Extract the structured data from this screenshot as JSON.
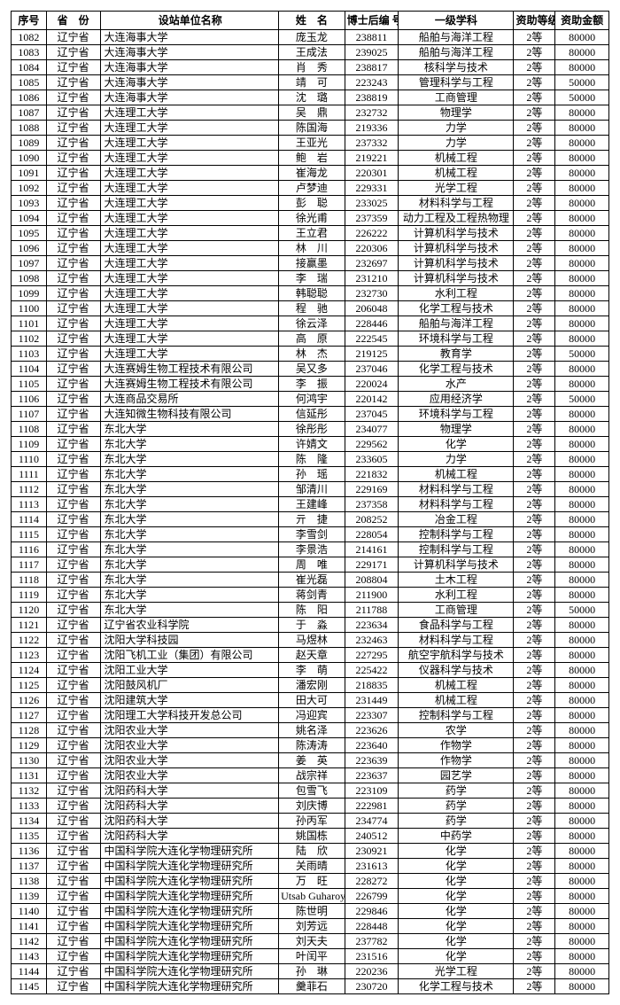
{
  "headers": {
    "seq": "序号",
    "province": "省　份",
    "institution": "设站单位名称",
    "name": "姓　名",
    "postdoc_id": "博士后编 号",
    "discipline": "一级学科",
    "level": "资助等级",
    "amount": "资助金额"
  },
  "rows": [
    {
      "seq": "1082",
      "prov": "辽宁省",
      "inst": "大连海事大学",
      "name": "庞玉龙",
      "id": "238811",
      "disc": "船舶与海洋工程",
      "lvl": "2等",
      "amt": "80000"
    },
    {
      "seq": "1083",
      "prov": "辽宁省",
      "inst": "大连海事大学",
      "name": "王成法",
      "id": "239025",
      "disc": "船舶与海洋工程",
      "lvl": "2等",
      "amt": "80000"
    },
    {
      "seq": "1084",
      "prov": "辽宁省",
      "inst": "大连海事大学",
      "name": "肖　秀",
      "id": "238817",
      "disc": "核科学与技术",
      "lvl": "2等",
      "amt": "80000"
    },
    {
      "seq": "1085",
      "prov": "辽宁省",
      "inst": "大连海事大学",
      "name": "靖　可",
      "id": "223243",
      "disc": "管理科学与工程",
      "lvl": "2等",
      "amt": "50000"
    },
    {
      "seq": "1086",
      "prov": "辽宁省",
      "inst": "大连海事大学",
      "name": "沈　璐",
      "id": "238819",
      "disc": "工商管理",
      "lvl": "2等",
      "amt": "50000"
    },
    {
      "seq": "1087",
      "prov": "辽宁省",
      "inst": "大连理工大学",
      "name": "吴　鼎",
      "id": "232732",
      "disc": "物理学",
      "lvl": "2等",
      "amt": "80000"
    },
    {
      "seq": "1088",
      "prov": "辽宁省",
      "inst": "大连理工大学",
      "name": "陈国海",
      "id": "219336",
      "disc": "力学",
      "lvl": "2等",
      "amt": "80000"
    },
    {
      "seq": "1089",
      "prov": "辽宁省",
      "inst": "大连理工大学",
      "name": "王亚光",
      "id": "237332",
      "disc": "力学",
      "lvl": "2等",
      "amt": "80000"
    },
    {
      "seq": "1090",
      "prov": "辽宁省",
      "inst": "大连理工大学",
      "name": "鲍　岩",
      "id": "219221",
      "disc": "机械工程",
      "lvl": "2等",
      "amt": "80000"
    },
    {
      "seq": "1091",
      "prov": "辽宁省",
      "inst": "大连理工大学",
      "name": "崔海龙",
      "id": "220301",
      "disc": "机械工程",
      "lvl": "2等",
      "amt": "80000"
    },
    {
      "seq": "1092",
      "prov": "辽宁省",
      "inst": "大连理工大学",
      "name": "卢梦迪",
      "id": "229331",
      "disc": "光学工程",
      "lvl": "2等",
      "amt": "80000"
    },
    {
      "seq": "1093",
      "prov": "辽宁省",
      "inst": "大连理工大学",
      "name": "彭　聪",
      "id": "233025",
      "disc": "材料科学与工程",
      "lvl": "2等",
      "amt": "80000"
    },
    {
      "seq": "1094",
      "prov": "辽宁省",
      "inst": "大连理工大学",
      "name": "徐光甫",
      "id": "237359",
      "disc": "动力工程及工程热物理",
      "lvl": "2等",
      "amt": "80000"
    },
    {
      "seq": "1095",
      "prov": "辽宁省",
      "inst": "大连理工大学",
      "name": "王立君",
      "id": "226222",
      "disc": "计算机科学与技术",
      "lvl": "2等",
      "amt": "80000"
    },
    {
      "seq": "1096",
      "prov": "辽宁省",
      "inst": "大连理工大学",
      "name": "林　川",
      "id": "220306",
      "disc": "计算机科学与技术",
      "lvl": "2等",
      "amt": "80000"
    },
    {
      "seq": "1097",
      "prov": "辽宁省",
      "inst": "大连理工大学",
      "name": "接赢墨",
      "id": "232697",
      "disc": "计算机科学与技术",
      "lvl": "2等",
      "amt": "80000"
    },
    {
      "seq": "1098",
      "prov": "辽宁省",
      "inst": "大连理工大学",
      "name": "李　瑞",
      "id": "231210",
      "disc": "计算机科学与技术",
      "lvl": "2等",
      "amt": "80000"
    },
    {
      "seq": "1099",
      "prov": "辽宁省",
      "inst": "大连理工大学",
      "name": "韩聪聪",
      "id": "232730",
      "disc": "水利工程",
      "lvl": "2等",
      "amt": "80000"
    },
    {
      "seq": "1100",
      "prov": "辽宁省",
      "inst": "大连理工大学",
      "name": "程　驰",
      "id": "206048",
      "disc": "化学工程与技术",
      "lvl": "2等",
      "amt": "80000"
    },
    {
      "seq": "1101",
      "prov": "辽宁省",
      "inst": "大连理工大学",
      "name": "徐云泽",
      "id": "228446",
      "disc": "船舶与海洋工程",
      "lvl": "2等",
      "amt": "80000"
    },
    {
      "seq": "1102",
      "prov": "辽宁省",
      "inst": "大连理工大学",
      "name": "高　原",
      "id": "222545",
      "disc": "环境科学与工程",
      "lvl": "2等",
      "amt": "80000"
    },
    {
      "seq": "1103",
      "prov": "辽宁省",
      "inst": "大连理工大学",
      "name": "林　杰",
      "id": "219125",
      "disc": "教育学",
      "lvl": "2等",
      "amt": "50000"
    },
    {
      "seq": "1104",
      "prov": "辽宁省",
      "inst": "大连赛姆生物工程技术有限公司",
      "name": "吴又多",
      "id": "237046",
      "disc": "化学工程与技术",
      "lvl": "2等",
      "amt": "80000"
    },
    {
      "seq": "1105",
      "prov": "辽宁省",
      "inst": "大连赛姆生物工程技术有限公司",
      "name": "李　振",
      "id": "220024",
      "disc": "水产",
      "lvl": "2等",
      "amt": "80000"
    },
    {
      "seq": "1106",
      "prov": "辽宁省",
      "inst": "大连商品交易所",
      "name": "何鸿宇",
      "id": "220142",
      "disc": "应用经济学",
      "lvl": "2等",
      "amt": "50000"
    },
    {
      "seq": "1107",
      "prov": "辽宁省",
      "inst": "大连知微生物科技有限公司",
      "name": "信延彤",
      "id": "237045",
      "disc": "环境科学与工程",
      "lvl": "2等",
      "amt": "80000"
    },
    {
      "seq": "1108",
      "prov": "辽宁省",
      "inst": "东北大学",
      "name": "徐彤彤",
      "id": "234077",
      "disc": "物理学",
      "lvl": "2等",
      "amt": "80000"
    },
    {
      "seq": "1109",
      "prov": "辽宁省",
      "inst": "东北大学",
      "name": "许婧文",
      "id": "229562",
      "disc": "化学",
      "lvl": "2等",
      "amt": "80000"
    },
    {
      "seq": "1110",
      "prov": "辽宁省",
      "inst": "东北大学",
      "name": "陈　隆",
      "id": "233605",
      "disc": "力学",
      "lvl": "2等",
      "amt": "80000"
    },
    {
      "seq": "1111",
      "prov": "辽宁省",
      "inst": "东北大学",
      "name": "孙　瑶",
      "id": "221832",
      "disc": "机械工程",
      "lvl": "2等",
      "amt": "80000"
    },
    {
      "seq": "1112",
      "prov": "辽宁省",
      "inst": "东北大学",
      "name": "邹清川",
      "id": "229169",
      "disc": "材料科学与工程",
      "lvl": "2等",
      "amt": "80000"
    },
    {
      "seq": "1113",
      "prov": "辽宁省",
      "inst": "东北大学",
      "name": "王建峰",
      "id": "237358",
      "disc": "材料科学与工程",
      "lvl": "2等",
      "amt": "80000"
    },
    {
      "seq": "1114",
      "prov": "辽宁省",
      "inst": "东北大学",
      "name": "亓　捷",
      "id": "208252",
      "disc": "冶金工程",
      "lvl": "2等",
      "amt": "80000"
    },
    {
      "seq": "1115",
      "prov": "辽宁省",
      "inst": "东北大学",
      "name": "李雪剑",
      "id": "228054",
      "disc": "控制科学与工程",
      "lvl": "2等",
      "amt": "80000"
    },
    {
      "seq": "1116",
      "prov": "辽宁省",
      "inst": "东北大学",
      "name": "李景浩",
      "id": "214161",
      "disc": "控制科学与工程",
      "lvl": "2等",
      "amt": "80000"
    },
    {
      "seq": "1117",
      "prov": "辽宁省",
      "inst": "东北大学",
      "name": "周　唯",
      "id": "229171",
      "disc": "计算机科学与技术",
      "lvl": "2等",
      "amt": "80000"
    },
    {
      "seq": "1118",
      "prov": "辽宁省",
      "inst": "东北大学",
      "name": "崔光磊",
      "id": "208804",
      "disc": "土木工程",
      "lvl": "2等",
      "amt": "80000"
    },
    {
      "seq": "1119",
      "prov": "辽宁省",
      "inst": "东北大学",
      "name": "蒋剑青",
      "id": "211900",
      "disc": "水利工程",
      "lvl": "2等",
      "amt": "80000"
    },
    {
      "seq": "1120",
      "prov": "辽宁省",
      "inst": "东北大学",
      "name": "陈　阳",
      "id": "211788",
      "disc": "工商管理",
      "lvl": "2等",
      "amt": "50000"
    },
    {
      "seq": "1121",
      "prov": "辽宁省",
      "inst": "辽宁省农业科学院",
      "name": "于　淼",
      "id": "223634",
      "disc": "食品科学与工程",
      "lvl": "2等",
      "amt": "80000"
    },
    {
      "seq": "1122",
      "prov": "辽宁省",
      "inst": "沈阳大学科技园",
      "name": "马煜林",
      "id": "232463",
      "disc": "材料科学与工程",
      "lvl": "2等",
      "amt": "80000"
    },
    {
      "seq": "1123",
      "prov": "辽宁省",
      "inst": "沈阳飞机工业（集团）有限公司",
      "name": "赵天章",
      "id": "227295",
      "disc": "航空宇航科学与技术",
      "lvl": "2等",
      "amt": "80000"
    },
    {
      "seq": "1124",
      "prov": "辽宁省",
      "inst": "沈阳工业大学",
      "name": "李　萌",
      "id": "225422",
      "disc": "仪器科学与技术",
      "lvl": "2等",
      "amt": "80000"
    },
    {
      "seq": "1125",
      "prov": "辽宁省",
      "inst": "沈阳鼓风机厂",
      "name": "潘宏刚",
      "id": "218835",
      "disc": "机械工程",
      "lvl": "2等",
      "amt": "80000"
    },
    {
      "seq": "1126",
      "prov": "辽宁省",
      "inst": "沈阳建筑大学",
      "name": "田大可",
      "id": "231449",
      "disc": "机械工程",
      "lvl": "2等",
      "amt": "80000"
    },
    {
      "seq": "1127",
      "prov": "辽宁省",
      "inst": "沈阳理工大学科技开发总公司",
      "name": "冯迎宾",
      "id": "223307",
      "disc": "控制科学与工程",
      "lvl": "2等",
      "amt": "80000"
    },
    {
      "seq": "1128",
      "prov": "辽宁省",
      "inst": "沈阳农业大学",
      "name": "姚名泽",
      "id": "223626",
      "disc": "农学",
      "lvl": "2等",
      "amt": "80000"
    },
    {
      "seq": "1129",
      "prov": "辽宁省",
      "inst": "沈阳农业大学",
      "name": "陈涛涛",
      "id": "223640",
      "disc": "作物学",
      "lvl": "2等",
      "amt": "80000"
    },
    {
      "seq": "1130",
      "prov": "辽宁省",
      "inst": "沈阳农业大学",
      "name": "姜　英",
      "id": "223639",
      "disc": "作物学",
      "lvl": "2等",
      "amt": "80000"
    },
    {
      "seq": "1131",
      "prov": "辽宁省",
      "inst": "沈阳农业大学",
      "name": "战宗祥",
      "id": "223637",
      "disc": "园艺学",
      "lvl": "2等",
      "amt": "80000"
    },
    {
      "seq": "1132",
      "prov": "辽宁省",
      "inst": "沈阳药科大学",
      "name": "包雪飞",
      "id": "223109",
      "disc": "药学",
      "lvl": "2等",
      "amt": "80000"
    },
    {
      "seq": "1133",
      "prov": "辽宁省",
      "inst": "沈阳药科大学",
      "name": "刘庆博",
      "id": "222981",
      "disc": "药学",
      "lvl": "2等",
      "amt": "80000"
    },
    {
      "seq": "1134",
      "prov": "辽宁省",
      "inst": "沈阳药科大学",
      "name": "孙丙军",
      "id": "234774",
      "disc": "药学",
      "lvl": "2等",
      "amt": "80000"
    },
    {
      "seq": "1135",
      "prov": "辽宁省",
      "inst": "沈阳药科大学",
      "name": "姚国栋",
      "id": "240512",
      "disc": "中药学",
      "lvl": "2等",
      "amt": "80000"
    },
    {
      "seq": "1136",
      "prov": "辽宁省",
      "inst": "中国科学院大连化学物理研究所",
      "name": "陆　欣",
      "id": "230921",
      "disc": "化学",
      "lvl": "2等",
      "amt": "80000"
    },
    {
      "seq": "1137",
      "prov": "辽宁省",
      "inst": "中国科学院大连化学物理研究所",
      "name": "关雨晴",
      "id": "231613",
      "disc": "化学",
      "lvl": "2等",
      "amt": "80000"
    },
    {
      "seq": "1138",
      "prov": "辽宁省",
      "inst": "中国科学院大连化学物理研究所",
      "name": "万　旺",
      "id": "228272",
      "disc": "化学",
      "lvl": "2等",
      "amt": "80000"
    },
    {
      "seq": "1139",
      "prov": "辽宁省",
      "inst": "中国科学院大连化学物理研究所",
      "name": "Utsab Guharoy",
      "id": "226799",
      "disc": "化学",
      "lvl": "2等",
      "amt": "80000"
    },
    {
      "seq": "1140",
      "prov": "辽宁省",
      "inst": "中国科学院大连化学物理研究所",
      "name": "陈世明",
      "id": "229846",
      "disc": "化学",
      "lvl": "2等",
      "amt": "80000"
    },
    {
      "seq": "1141",
      "prov": "辽宁省",
      "inst": "中国科学院大连化学物理研究所",
      "name": "刘芳远",
      "id": "228448",
      "disc": "化学",
      "lvl": "2等",
      "amt": "80000"
    },
    {
      "seq": "1142",
      "prov": "辽宁省",
      "inst": "中国科学院大连化学物理研究所",
      "name": "刘天夫",
      "id": "237782",
      "disc": "化学",
      "lvl": "2等",
      "amt": "80000"
    },
    {
      "seq": "1143",
      "prov": "辽宁省",
      "inst": "中国科学院大连化学物理研究所",
      "name": "叶闰平",
      "id": "231516",
      "disc": "化学",
      "lvl": "2等",
      "amt": "80000"
    },
    {
      "seq": "1144",
      "prov": "辽宁省",
      "inst": "中国科学院大连化学物理研究所",
      "name": "孙　琳",
      "id": "220236",
      "disc": "光学工程",
      "lvl": "2等",
      "amt": "80000"
    },
    {
      "seq": "1145",
      "prov": "辽宁省",
      "inst": "中国科学院大连化学物理研究所",
      "name": "羹菲石",
      "id": "230720",
      "disc": "化学工程与技术",
      "lvl": "2等",
      "amt": "80000"
    }
  ]
}
